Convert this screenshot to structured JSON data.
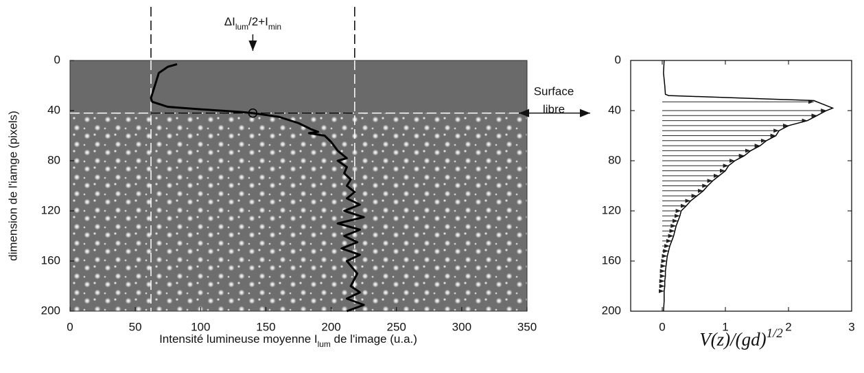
{
  "chart_data": [
    {
      "type": "line",
      "annotation": [
        "ΔI",
        "lum",
        "/2+I",
        "min"
      ],
      "x_label": [
        "Intensité lumineuse moyenne I",
        "lum",
        " de l'image (u.a.)"
      ],
      "y_label": "dimension de l'iamge  (pixels)",
      "side_label": [
        "Surface",
        "libre"
      ],
      "xlim": [
        0,
        350
      ],
      "xticks": [
        0,
        50,
        100,
        150,
        200,
        250,
        300,
        350
      ],
      "ylim": [
        0,
        200
      ],
      "yticks": [
        0,
        40,
        80,
        120,
        160,
        200
      ],
      "y_inverted": true,
      "color": "#000000",
      "x": [
        82,
        75,
        68,
        65,
        62,
        63,
        75,
        100,
        130,
        140,
        160,
        175,
        185,
        190,
        183,
        195,
        200,
        205,
        212,
        205,
        212,
        210,
        215,
        212,
        218,
        212,
        222,
        210,
        225,
        205,
        222,
        210,
        220,
        208,
        222,
        212,
        220,
        215,
        222,
        212,
        225,
        212
      ],
      "y": [
        3,
        5,
        10,
        20,
        30,
        33,
        37,
        39,
        41,
        42,
        45,
        50,
        55,
        57,
        58,
        60,
        65,
        72,
        78,
        80,
        85,
        90,
        95,
        100,
        105,
        110,
        115,
        120,
        125,
        130,
        135,
        140,
        145,
        150,
        155,
        160,
        170,
        180,
        185,
        190,
        195,
        200
      ],
      "marker": {
        "x": 140,
        "y": 42
      },
      "vlines": [
        62,
        218
      ],
      "hline": 42
    },
    {
      "type": "profile",
      "x_label": [
        "V(z)/(gd)",
        "1/2"
      ],
      "xlim": [
        -0.5,
        3
      ],
      "xticks": [
        0,
        1,
        2,
        3
      ],
      "ylim": [
        0,
        200
      ],
      "yticks": [
        0,
        40,
        80,
        120,
        160,
        200
      ],
      "y_inverted": true,
      "color": "#000000",
      "line": {
        "x": [
          0.03,
          0.02,
          0.04,
          0.05,
          0.1,
          2.4,
          2.7,
          2.6,
          2.45,
          2.3,
          2.0,
          1.85,
          1.8,
          1.65,
          1.55,
          1.4,
          1.3,
          1.15,
          1.05,
          1.0,
          0.9,
          0.8,
          0.72,
          0.65,
          0.55,
          0.45,
          0.38,
          0.3,
          0.28,
          0.25,
          0.22,
          0.2,
          0.18,
          0.15,
          0.12,
          0.1,
          0.08,
          0.07,
          0.06,
          0.05,
          0.05,
          0.04,
          0.04,
          0.03,
          0.03,
          0.02
        ],
        "y": [
          0,
          10,
          20,
          27,
          28,
          32,
          38,
          40,
          44,
          48,
          52,
          56,
          60,
          64,
          68,
          72,
          76,
          80,
          84,
          88,
          92,
          96,
          100,
          104,
          108,
          112,
          116,
          120,
          124,
          128,
          132,
          136,
          140,
          144,
          148,
          152,
          156,
          160,
          164,
          168,
          172,
          176,
          180,
          184,
          192,
          200
        ]
      },
      "arrows": {
        "x": [
          2.4,
          2.6,
          2.45,
          2.3,
          2.0,
          1.85,
          1.8,
          1.65,
          1.55,
          1.4,
          1.3,
          1.15,
          1.05,
          1.0,
          0.9,
          0.8,
          0.72,
          0.65,
          0.55,
          0.45,
          0.38,
          0.3,
          0.28,
          0.25,
          0.22,
          0.2,
          0.18,
          0.15,
          0.12,
          0.1,
          0.08,
          0.07,
          0.06,
          0.05,
          0.05,
          0.04,
          0.04,
          0.03
        ],
        "y": [
          33,
          40,
          44,
          48,
          52,
          56,
          60,
          64,
          68,
          72,
          76,
          80,
          84,
          88,
          92,
          96,
          100,
          104,
          108,
          112,
          116,
          120,
          124,
          128,
          132,
          136,
          140,
          144,
          148,
          152,
          156,
          160,
          164,
          168,
          172,
          176,
          180,
          184
        ]
      }
    }
  ]
}
